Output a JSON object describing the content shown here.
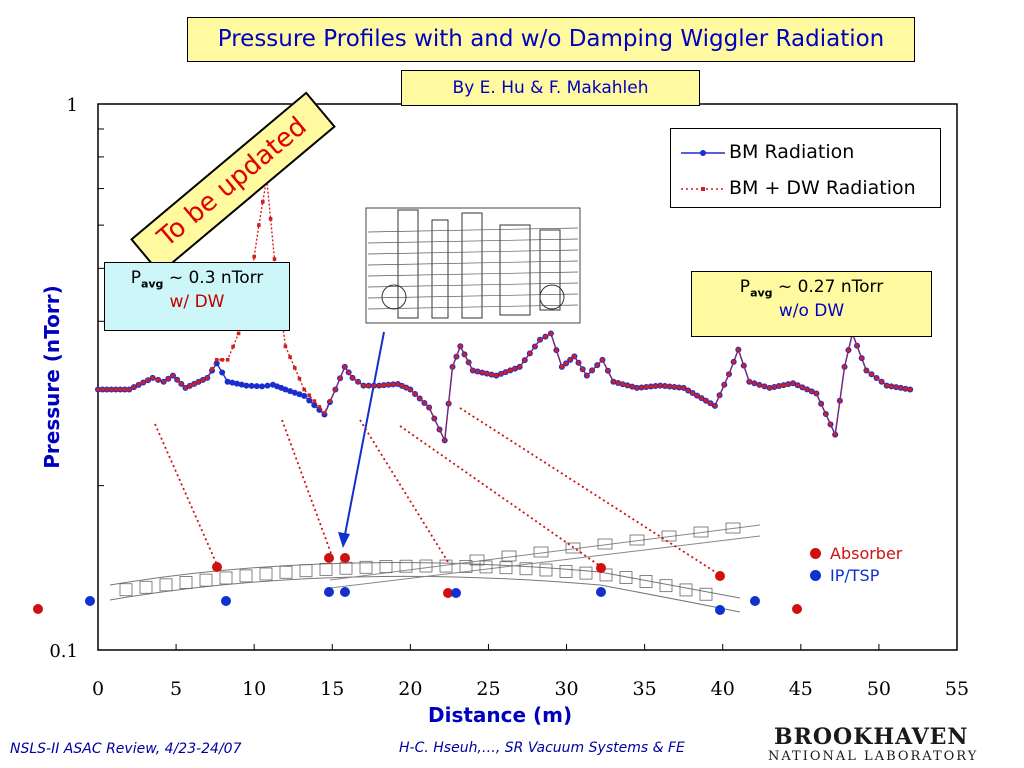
{
  "title": "Pressure Profiles with and w/o Damping Wiggler Radiation",
  "author": "By E. Hu & F. Makahleh",
  "stamp": "To be updated",
  "pavg_dw": {
    "prefix": "P",
    "sub": "avg",
    "value": " ~ 0.3 nTorr",
    "note": "w/ DW"
  },
  "pavg_nodw": {
    "prefix": "P",
    "sub": "avg",
    "value": " ~ 0.27 nTorr",
    "note": "w/o DW"
  },
  "legend_markers": {
    "absorber": "Absorber",
    "ip_tsp": "IP/TSP",
    "absorber_color": "#d01010",
    "ip_color": "#1030d0"
  },
  "footer": {
    "left": "NSLS-II ASAC Review, 4/23-24/07",
    "center": "H-C. Hseuh,…, SR Vacuum Systems & FE",
    "logo_line1": "BROOKHAVEN",
    "logo_line2": "NATIONAL LABORATORY"
  },
  "chart_data": {
    "type": "line",
    "xlabel": "Distance (m)",
    "ylabel": "Pressure (nTorr)",
    "xlim": [
      0,
      55
    ],
    "ylim": [
      0.1,
      1
    ],
    "yscale": "log",
    "xticks": [
      0,
      5,
      10,
      15,
      20,
      25,
      30,
      35,
      40,
      45,
      50,
      55
    ],
    "yticks": [
      {
        "value": 1,
        "label": "1"
      },
      {
        "value": 0.1,
        "label": "0.1"
      }
    ],
    "legend_position": "top-right",
    "series": [
      {
        "name": "BM Radiation",
        "color": "#1a2ed0",
        "x": [
          0,
          2,
          3.5,
          4.2,
          4.8,
          5.6,
          7,
          7.6,
          8.3,
          9.5,
          10.5,
          11.2,
          12,
          13.2,
          14.5,
          15.2,
          15.8,
          16.3,
          17,
          18,
          19.2,
          20,
          21.2,
          22.2,
          22.7,
          23.2,
          24,
          25.5,
          27,
          28.3,
          29,
          29.7,
          30.5,
          31.3,
          32.3,
          33,
          34.5,
          36,
          37.5,
          39.5,
          40.4,
          41,
          41.7,
          43,
          44.5,
          46,
          47.2,
          47.8,
          48.3,
          49.2,
          50.5,
          52
        ],
        "y": [
          0.3,
          0.3,
          0.315,
          0.31,
          0.318,
          0.302,
          0.315,
          0.335,
          0.31,
          0.305,
          0.304,
          0.306,
          0.3,
          0.292,
          0.27,
          0.3,
          0.33,
          0.315,
          0.305,
          0.305,
          0.307,
          0.3,
          0.278,
          0.242,
          0.33,
          0.36,
          0.325,
          0.318,
          0.33,
          0.37,
          0.38,
          0.33,
          0.345,
          0.318,
          0.34,
          0.31,
          0.302,
          0.305,
          0.302,
          0.28,
          0.32,
          0.355,
          0.31,
          0.302,
          0.308,
          0.295,
          0.248,
          0.33,
          0.38,
          0.325,
          0.305,
          0.3
        ]
      },
      {
        "name": "BM + DW Radiation",
        "color": "#d02020",
        "x": [
          0,
          2,
          3.5,
          4.2,
          4.8,
          5.6,
          7,
          7.6,
          8.3,
          9,
          9.7,
          10.3,
          10.8,
          11.3,
          12,
          13.2,
          14.5,
          15.2,
          15.8,
          16.3,
          17,
          18,
          19.2,
          20,
          21.2,
          22.2,
          22.7,
          23.2,
          24,
          25.5,
          27,
          28.3,
          29,
          29.7,
          30.5,
          31.3,
          32.3,
          33,
          34.5,
          36,
          37.5,
          39.5,
          40.4,
          41,
          41.7,
          43,
          44.5,
          46,
          47.2,
          47.8,
          48.3,
          49.2,
          50.5,
          52
        ],
        "y": [
          0.3,
          0.3,
          0.315,
          0.31,
          0.318,
          0.302,
          0.315,
          0.34,
          0.34,
          0.38,
          0.46,
          0.6,
          0.73,
          0.52,
          0.36,
          0.3,
          0.272,
          0.3,
          0.33,
          0.315,
          0.305,
          0.305,
          0.307,
          0.3,
          0.278,
          0.242,
          0.33,
          0.36,
          0.325,
          0.318,
          0.33,
          0.37,
          0.38,
          0.33,
          0.345,
          0.318,
          0.34,
          0.31,
          0.302,
          0.305,
          0.302,
          0.28,
          0.32,
          0.355,
          0.31,
          0.302,
          0.308,
          0.295,
          0.248,
          0.33,
          0.38,
          0.325,
          0.305,
          0.3
        ]
      }
    ]
  }
}
